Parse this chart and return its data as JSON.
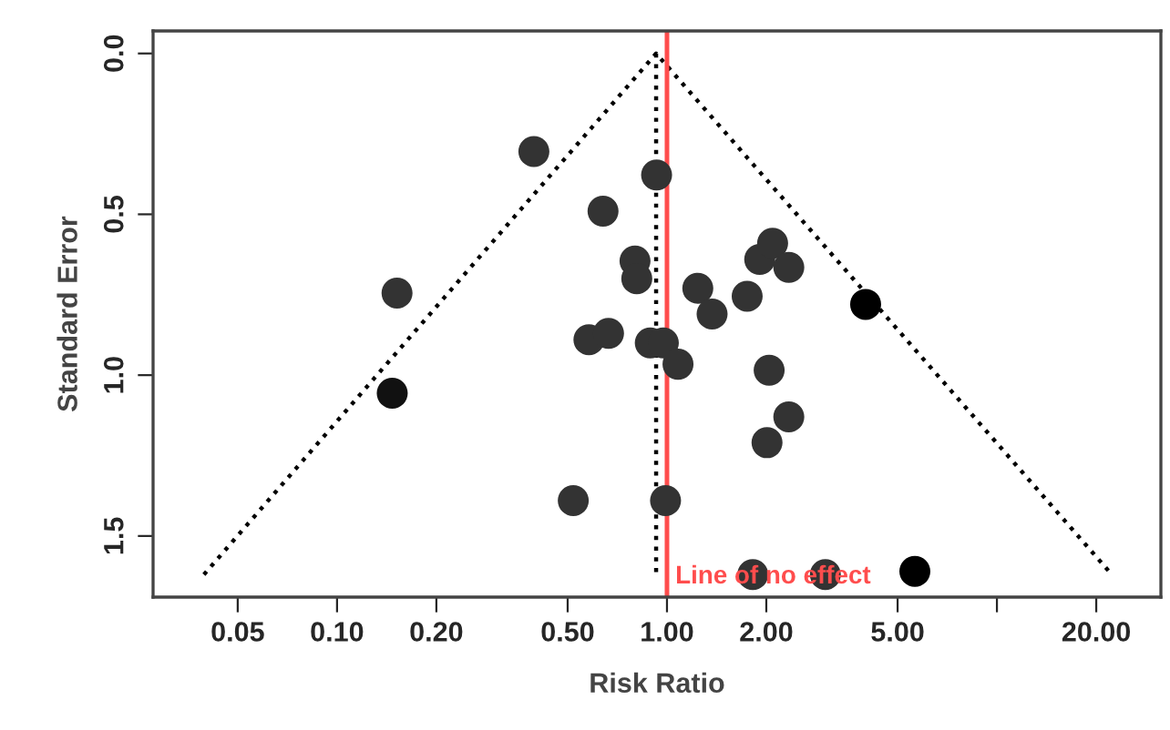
{
  "chart_data": {
    "type": "scatter",
    "xlabel": "Risk Ratio",
    "ylabel": "Standard Error",
    "log": "x",
    "grid": false,
    "legend": false,
    "marker": "circle",
    "xlim": [
      0.0277,
      31.4
    ],
    "ylim": [
      1.69,
      -0.07
    ],
    "xticks": [
      {
        "value": 0.05,
        "label": "0.05"
      },
      {
        "value": 0.1,
        "label": "0.10"
      },
      {
        "value": 0.2,
        "label": "0.20"
      },
      {
        "value": 0.5,
        "label": "0.50"
      },
      {
        "value": 1,
        "label": "1.00"
      },
      {
        "value": 2,
        "label": "2.00"
      },
      {
        "value": 5,
        "label": "5.00"
      },
      {
        "value": 10,
        "label": null
      },
      {
        "value": 20,
        "label": "20.00"
      }
    ],
    "yticks": [
      {
        "value": 0,
        "label": "0.0"
      },
      {
        "value": 0.5,
        "label": "0.5"
      },
      {
        "value": 1,
        "label": "1.0"
      },
      {
        "value": 1.5,
        "label": "1.5"
      }
    ],
    "ref_lines": [
      {
        "axis": "x",
        "value": 1,
        "label": "Line of no effect",
        "color": "#ff4d4d",
        "line_style": "solid"
      }
    ],
    "series": [
      {
        "type": "line",
        "line_style": "dotted",
        "marker": "none",
        "color": "#000000",
        "x": [
          0.0395,
          0.927,
          22.3
        ],
        "values": [
          1.62,
          0,
          1.62
        ]
      },
      {
        "type": "line",
        "line_style": "dotted",
        "marker": "none",
        "color": "#000000",
        "x": [
          0.927,
          0.927
        ],
        "values": [
          0,
          1.62
        ]
      },
      {
        "x": [
          0.395,
          0.64,
          0.152,
          0.147,
          0.52,
          0.93,
          0.8,
          0.81,
          0.58,
          0.665,
          0.89,
          0.975,
          1.08,
          1.24,
          1.37,
          1.75,
          1.91,
          2.09,
          2.34,
          4.0,
          2.04,
          2.34,
          2.01,
          0.99,
          1.82,
          3.02,
          5.64
        ],
        "values": [
          0.305,
          0.49,
          0.745,
          1.056,
          1.39,
          0.378,
          0.645,
          0.7,
          0.89,
          0.87,
          0.9,
          0.9,
          0.966,
          0.73,
          0.81,
          0.755,
          0.64,
          0.59,
          0.665,
          0.78,
          0.985,
          1.13,
          1.21,
          1.39,
          1.62,
          1.62,
          1.61
        ],
        "colors": [
          "#333333",
          "#333333",
          "#333333",
          "#111111",
          "#333333",
          "#333333",
          "#333333",
          "#333333",
          "#333333",
          "#333333",
          "#333333",
          "#333333",
          "#333333",
          "#333333",
          "#333333",
          "#333333",
          "#333333",
          "#333333",
          "#333333",
          "#000000",
          "#333333",
          "#333333",
          "#333333",
          "#333333",
          "#333333",
          "#333333",
          "#000000"
        ]
      }
    ]
  }
}
